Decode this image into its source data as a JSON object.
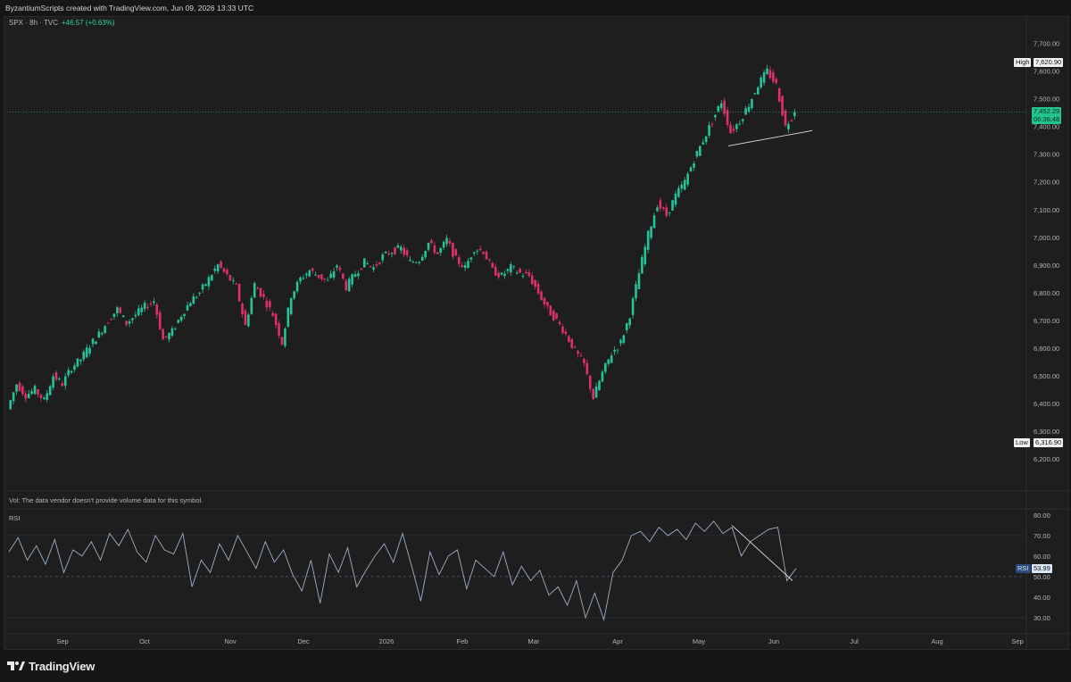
{
  "header": {
    "caption": "ByzantiumScripts created with TradingView.com, Jun 09, 2026 13:33 UTC",
    "symbol": "SPX · 8h · TVC",
    "change": "+46.57 (+0.63%)"
  },
  "markers": {
    "high_tag": "High",
    "high_value": "7,620.90",
    "low_tag": "Low",
    "low_value": "6,316.90",
    "last_price": "7,452.29",
    "countdown": "06:36:48",
    "rsi_tag": "RSI",
    "rsi_value": "53.99"
  },
  "volume_note": "Vol: The data vendor doesn't provide volume data for this symbol.",
  "rsi_title": "RSI",
  "brand": {
    "name": "TradingView"
  },
  "colors": {
    "up": "#26c29a",
    "down": "#e0306a",
    "rsi_line": "#9cb0c8",
    "last_price_bg": "#22c38e",
    "background": "#1e1e1e"
  },
  "chart_data": [
    {
      "type": "candlestick",
      "ylim": [
        6100,
        7760
      ],
      "y_ticks": [
        6200,
        6300,
        6400,
        6500,
        6600,
        6700,
        6800,
        6900,
        7000,
        7100,
        7200,
        7300,
        7400,
        7500,
        7600,
        7700
      ],
      "y_tick_labels": [
        "6,200.00",
        "6,300.00",
        "6,400.00",
        "6,500.00",
        "6,600.00",
        "6,700.00",
        "6,800.00",
        "6,900.00",
        "7,000.00",
        "7,100.00",
        "7,200.00",
        "7,300.00",
        "7,400.00",
        "7,500.00",
        "7,600.00",
        "7,700.00"
      ],
      "x_tick_labels": [
        "Sep",
        "Oct",
        "Nov",
        "Dec",
        "2026",
        "Feb",
        "Mar",
        "Apr",
        "May",
        "Jun",
        "Jul",
        "Aug",
        "Sep"
      ],
      "close_path": [
        6380,
        6470,
        6430,
        6450,
        6410,
        6500,
        6470,
        6530,
        6560,
        6610,
        6650,
        6700,
        6740,
        6690,
        6720,
        6750,
        6770,
        6630,
        6660,
        6720,
        6770,
        6800,
        6850,
        6900,
        6860,
        6820,
        6680,
        6830,
        6780,
        6720,
        6620,
        6790,
        6850,
        6880,
        6860,
        6840,
        6900,
        6820,
        6870,
        6910,
        6890,
        6930,
        6950,
        6960,
        6910,
        6920,
        6980,
        6940,
        6990,
        6920,
        6890,
        6960,
        6950,
        6880,
        6860,
        6890,
        6870,
        6860,
        6800,
        6740,
        6700,
        6650,
        6590,
        6540,
        6420,
        6510,
        6580,
        6620,
        6720,
        6870,
        7010,
        7120,
        7080,
        7150,
        7200,
        7280,
        7350,
        7420,
        7490,
        7380,
        7420,
        7480,
        7550,
        7600,
        7550,
        7400,
        7452
      ],
      "low": 6316.9,
      "high": 7620.9,
      "last": 7452.29,
      "trendline": [
        [
          7330
        ],
        [
          7385
        ]
      ],
      "series": [
        {
          "values": []
        }
      ]
    },
    {
      "type": "line",
      "ylim": [
        23,
        83
      ],
      "y_ticks": [
        30,
        40,
        50,
        60,
        70,
        80
      ],
      "y_tick_labels": [
        "30.00",
        "40.00",
        "50.00",
        "60.00",
        "70.00",
        "80.00"
      ],
      "midline": 50,
      "last": 53.99,
      "values": [
        62,
        69,
        58,
        65,
        56,
        68,
        52,
        63,
        60,
        67,
        58,
        71,
        65,
        73,
        62,
        57,
        70,
        63,
        61,
        71,
        45,
        58,
        52,
        66,
        58,
        70,
        62,
        54,
        67,
        57,
        63,
        51,
        43,
        58,
        37,
        61,
        52,
        64,
        45,
        53,
        60,
        66,
        57,
        71,
        55,
        38,
        62,
        51,
        60,
        63,
        44,
        58,
        54,
        50,
        62,
        46,
        55,
        48,
        53,
        41,
        45,
        36,
        48,
        30,
        42,
        29,
        52,
        58,
        70,
        72,
        67,
        74,
        70,
        73,
        68,
        76,
        72,
        77,
        71,
        74,
        60,
        67,
        70,
        73,
        74,
        48,
        54
      ],
      "divergence_line": [
        75,
        48
      ]
    }
  ]
}
